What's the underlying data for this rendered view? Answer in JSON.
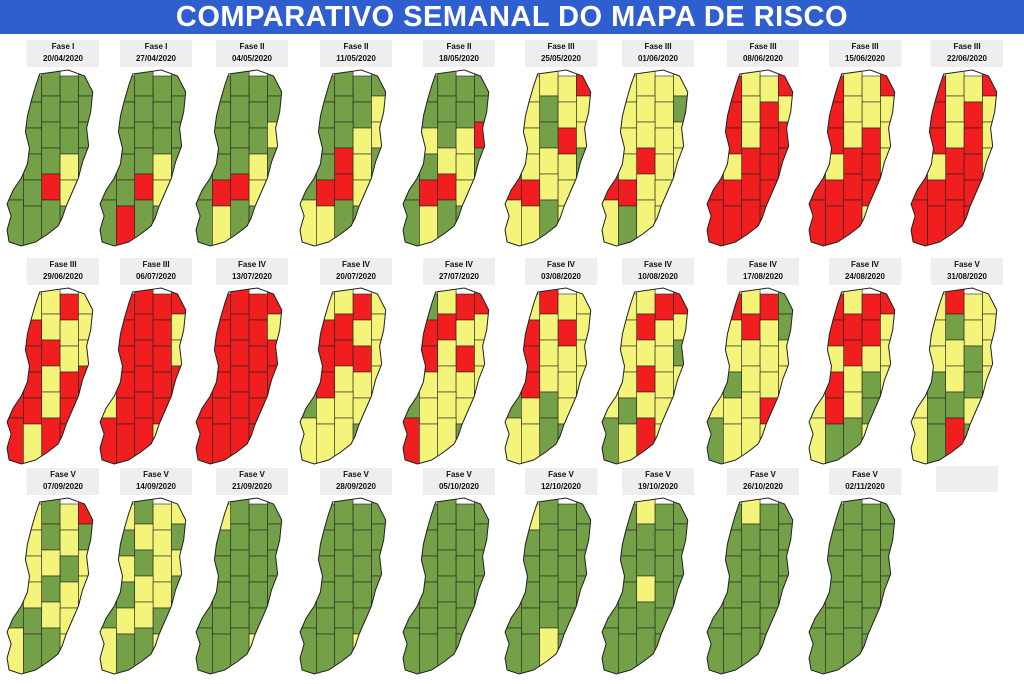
{
  "title": "COMPARATIVO SEMANAL DO MAPA DE RISCO",
  "colors": {
    "low": "#74a048",
    "moderate": "#f4f47a",
    "high": "#f01e1e",
    "border": "#222222",
    "banner": "#2f5fcf"
  },
  "weeks": [
    {
      "phase": "Fase I",
      "date": "20/04/2020",
      "risk": [
        "G",
        "G",
        "G",
        "G",
        "G",
        "G",
        "G",
        "G",
        "G",
        "G",
        "Y",
        "G",
        "G",
        "G",
        "G",
        "R",
        "G",
        "G",
        "Y",
        "G",
        "G",
        "G",
        "R",
        "Y",
        "G",
        "G",
        "G",
        "G",
        "G",
        "G"
      ]
    },
    {
      "phase": "Fase I",
      "date": "27/04/2020",
      "risk": [
        "G",
        "G",
        "G",
        "G",
        "G",
        "G",
        "G",
        "G",
        "G",
        "G",
        "Y",
        "G",
        "G",
        "G",
        "G",
        "R",
        "G",
        "G",
        "Y",
        "G",
        "G",
        "G",
        "R",
        "Y",
        "G",
        "G",
        "R",
        "G",
        "G",
        "G"
      ]
    },
    {
      "phase": "Fase II",
      "date": "04/05/2020",
      "risk": [
        "G",
        "G",
        "G",
        "G",
        "G",
        "G",
        "G",
        "G",
        "G",
        "G",
        "Y",
        "G",
        "G",
        "G",
        "Y",
        "R",
        "G",
        "G",
        "Y",
        "G",
        "G",
        "R",
        "R",
        "Y",
        "G",
        "G",
        "Y",
        "G",
        "G",
        "G"
      ]
    },
    {
      "phase": "Fase II",
      "date": "11/05/2020",
      "risk": [
        "G",
        "G",
        "G",
        "G",
        "G",
        "Y",
        "G",
        "G",
        "G",
        "Y",
        "Y",
        "G",
        "G",
        "Y",
        "Y",
        "R",
        "G",
        "R",
        "Y",
        "G",
        "G",
        "R",
        "R",
        "Y",
        "G",
        "Y",
        "Y",
        "G",
        "G",
        "G"
      ]
    },
    {
      "phase": "Fase II",
      "date": "18/05/2020",
      "risk": [
        "G",
        "G",
        "G",
        "G",
        "G",
        "G",
        "G",
        "G",
        "G",
        "G",
        "Y",
        "Y",
        "G",
        "Y",
        "R",
        "R",
        "G",
        "Y",
        "Y",
        "G",
        "G",
        "R",
        "R",
        "Y",
        "G",
        "G",
        "Y",
        "G",
        "G",
        "G"
      ]
    },
    {
      "phase": "Fase III",
      "date": "25/05/2020",
      "risk": [
        "Y",
        "Y",
        "Y",
        "Y",
        "R",
        "Y",
        "Y",
        "G",
        "Y",
        "Y",
        "Y",
        "Y",
        "G",
        "R",
        "Y",
        "R",
        "Y",
        "Y",
        "Y",
        "G",
        "R",
        "R",
        "Y",
        "Y",
        "G",
        "Y",
        "Y",
        "G",
        "Y",
        "G"
      ]
    },
    {
      "phase": "Fase III",
      "date": "01/06/2020",
      "risk": [
        "Y",
        "Y",
        "Y",
        "Y",
        "Y",
        "Y",
        "Y",
        "Y",
        "Y",
        "G",
        "Y",
        "Y",
        "Y",
        "Y",
        "Y",
        "Y",
        "Y",
        "R",
        "Y",
        "Y",
        "R",
        "R",
        "Y",
        "Y",
        "Y",
        "Y",
        "G",
        "Y",
        "Y",
        "G"
      ]
    },
    {
      "phase": "Fase III",
      "date": "08/06/2020",
      "risk": [
        "R",
        "R",
        "Y",
        "Y",
        "R",
        "Y",
        "R",
        "Y",
        "R",
        "Y",
        "R",
        "R",
        "Y",
        "R",
        "R",
        "R",
        "Y",
        "R",
        "R",
        "R",
        "R",
        "R",
        "R",
        "R",
        "Y",
        "R",
        "R",
        "R",
        "R",
        "G"
      ]
    },
    {
      "phase": "Fase III",
      "date": "15/06/2020",
      "risk": [
        "Y",
        "R",
        "Y",
        "Y",
        "R",
        "Y",
        "R",
        "Y",
        "Y",
        "Y",
        "R",
        "R",
        "Y",
        "R",
        "Y",
        "R",
        "Y",
        "R",
        "R",
        "Y",
        "R",
        "R",
        "R",
        "R",
        "Y",
        "R",
        "R",
        "R",
        "Y",
        "G"
      ]
    },
    {
      "phase": "Fase III",
      "date": "22/06/2020",
      "risk": [
        "R",
        "R",
        "Y",
        "Y",
        "R",
        "Y",
        "R",
        "Y",
        "R",
        "Y",
        "R",
        "R",
        "Y",
        "R",
        "Y",
        "R",
        "Y",
        "R",
        "R",
        "Y",
        "R",
        "R",
        "R",
        "R",
        "Y",
        "R",
        "R",
        "R",
        "R",
        "G"
      ]
    },
    {
      "phase": "Fase III",
      "date": "29/06/2020",
      "risk": [
        "Y",
        "Y",
        "Y",
        "R",
        "Y",
        "Y",
        "R",
        "Y",
        "Y",
        "Y",
        "R",
        "R",
        "R",
        "Y",
        "Y",
        "R",
        "R",
        "Y",
        "R",
        "R",
        "R",
        "R",
        "Y",
        "R",
        "R",
        "R",
        "Y",
        "R",
        "R",
        "R"
      ]
    },
    {
      "phase": "Fase III",
      "date": "06/07/2020",
      "risk": [
        "Y",
        "R",
        "R",
        "R",
        "R",
        "Y",
        "R",
        "R",
        "R",
        "Y",
        "R",
        "R",
        "R",
        "R",
        "Y",
        "R",
        "R",
        "R",
        "R",
        "R",
        "Y",
        "R",
        "R",
        "R",
        "R",
        "R",
        "R",
        "R",
        "Y",
        "R"
      ]
    },
    {
      "phase": "Fase IV",
      "date": "13/07/2020",
      "risk": [
        "Y",
        "R",
        "R",
        "R",
        "R",
        "Y",
        "R",
        "R",
        "R",
        "Y",
        "R",
        "R",
        "R",
        "R",
        "R",
        "R",
        "R",
        "R",
        "R",
        "R",
        "R",
        "R",
        "R",
        "R",
        "R",
        "R",
        "R",
        "R",
        "R",
        "R"
      ]
    },
    {
      "phase": "Fase IV",
      "date": "20/07/2020",
      "risk": [
        "Y",
        "Y",
        "Y",
        "R",
        "Y",
        "Y",
        "R",
        "R",
        "Y",
        "Y",
        "Y",
        "R",
        "R",
        "R",
        "Y",
        "G",
        "R",
        "Y",
        "Y",
        "Y",
        "G",
        "Y",
        "Y",
        "Y",
        "G",
        "Y",
        "Y",
        "Y",
        "G",
        "Y"
      ]
    },
    {
      "phase": "Fase IV",
      "date": "27/07/2020",
      "risk": [
        "R",
        "G",
        "Y",
        "R",
        "R",
        "Y",
        "R",
        "R",
        "Y",
        "Y",
        "Y",
        "R",
        "Y",
        "R",
        "Y",
        "Y",
        "Y",
        "Y",
        "Y",
        "Y",
        "G",
        "Y",
        "Y",
        "Y",
        "G",
        "R",
        "Y",
        "Y",
        "G",
        "Y"
      ]
    },
    {
      "phase": "Fase IV",
      "date": "03/08/2020",
      "risk": [
        "Y",
        "Y",
        "R",
        "Y",
        "Y",
        "Y",
        "R",
        "Y",
        "R",
        "Y",
        "R",
        "R",
        "Y",
        "Y",
        "Y",
        "Y",
        "R",
        "Y",
        "Y",
        "Y",
        "G",
        "Y",
        "G",
        "Y",
        "G",
        "Y",
        "Y",
        "G",
        "G",
        "Y"
      ]
    },
    {
      "phase": "Fase IV",
      "date": "10/08/2020",
      "risk": [
        "R",
        "Y",
        "Y",
        "R",
        "R",
        "Y",
        "Y",
        "R",
        "Y",
        "Y",
        "R",
        "Y",
        "Y",
        "Y",
        "G",
        "Y",
        "Y",
        "R",
        "Y",
        "Y",
        "Y",
        "G",
        "Y",
        "Y",
        "Y",
        "G",
        "Y",
        "R",
        "Y",
        "G"
      ]
    },
    {
      "phase": "Fase IV",
      "date": "17/08/2020",
      "risk": [
        "R",
        "R",
        "Y",
        "R",
        "G",
        "Y",
        "Y",
        "R",
        "Y",
        "G",
        "Y",
        "Y",
        "Y",
        "Y",
        "Y",
        "Y",
        "G",
        "Y",
        "Y",
        "Y",
        "Y",
        "Y",
        "Y",
        "R",
        "Y",
        "G",
        "Y",
        "Y",
        "Y",
        "G"
      ]
    },
    {
      "phase": "Fase IV",
      "date": "24/08/2020",
      "risk": [
        "R",
        "R",
        "Y",
        "R",
        "R",
        "Y",
        "R",
        "R",
        "R",
        "Y",
        "Y",
        "Y",
        "R",
        "Y",
        "Y",
        "Y",
        "R",
        "Y",
        "G",
        "Y",
        "Y",
        "R",
        "Y",
        "G",
        "Y",
        "Y",
        "G",
        "G",
        "Y",
        "G"
      ]
    },
    {
      "phase": "Fase V",
      "date": "31/08/2020",
      "risk": [
        "Y",
        "Y",
        "R",
        "Y",
        "Y",
        "Y",
        "Y",
        "G",
        "Y",
        "Y",
        "Y",
        "Y",
        "Y",
        "G",
        "Y",
        "Y",
        "G",
        "Y",
        "G",
        "Y",
        "Y",
        "G",
        "G",
        "Y",
        "G",
        "Y",
        "G",
        "R",
        "G",
        "G"
      ]
    },
    {
      "phase": "Fase V",
      "date": "07/09/2020",
      "risk": [
        "Y",
        "Y",
        "G",
        "Y",
        "R",
        "Y",
        "Y",
        "G",
        "Y",
        "G",
        "Y",
        "Y",
        "Y",
        "G",
        "Y",
        "G",
        "Y",
        "G",
        "Y",
        "Y",
        "G",
        "G",
        "Y",
        "Y",
        "G",
        "Y",
        "G",
        "G",
        "Y",
        "G"
      ]
    },
    {
      "phase": "Fase V",
      "date": "14/09/2020",
      "risk": [
        "Y",
        "Y",
        "G",
        "Y",
        "Y",
        "Y",
        "G",
        "Y",
        "Y",
        "G",
        "Y",
        "Y",
        "G",
        "Y",
        "Y",
        "G",
        "G",
        "Y",
        "Y",
        "G",
        "G",
        "Y",
        "Y",
        "G",
        "G",
        "Y",
        "G",
        "G",
        "Y",
        "G"
      ]
    },
    {
      "phase": "Fase V",
      "date": "21/09/2020",
      "risk": [
        "G",
        "Y",
        "G",
        "G",
        "G",
        "G",
        "G",
        "G",
        "G",
        "G",
        "G",
        "G",
        "G",
        "G",
        "G",
        "G",
        "G",
        "G",
        "G",
        "G",
        "G",
        "G",
        "G",
        "G",
        "G",
        "G",
        "G",
        "G",
        "Y",
        "G"
      ]
    },
    {
      "phase": "Fase V",
      "date": "28/09/2020",
      "risk": [
        "G",
        "G",
        "G",
        "G",
        "G",
        "G",
        "G",
        "G",
        "G",
        "G",
        "G",
        "G",
        "G",
        "G",
        "G",
        "G",
        "G",
        "G",
        "G",
        "G",
        "G",
        "G",
        "G",
        "G",
        "G",
        "G",
        "G",
        "G",
        "Y",
        "G"
      ]
    },
    {
      "phase": "Fase V",
      "date": "05/10/2020",
      "risk": [
        "G",
        "G",
        "G",
        "G",
        "G",
        "G",
        "G",
        "G",
        "G",
        "G",
        "G",
        "G",
        "G",
        "G",
        "G",
        "G",
        "G",
        "G",
        "G",
        "G",
        "G",
        "G",
        "G",
        "G",
        "G",
        "G",
        "G",
        "G",
        "G",
        "G"
      ]
    },
    {
      "phase": "Fase V",
      "date": "12/10/2020",
      "risk": [
        "G",
        "Y",
        "G",
        "G",
        "G",
        "G",
        "G",
        "G",
        "G",
        "G",
        "G",
        "G",
        "G",
        "G",
        "G",
        "G",
        "G",
        "G",
        "G",
        "G",
        "G",
        "G",
        "G",
        "G",
        "G",
        "G",
        "G",
        "Y",
        "G",
        "G"
      ]
    },
    {
      "phase": "Fase V",
      "date": "19/10/2020",
      "risk": [
        "G",
        "G",
        "Y",
        "G",
        "G",
        "G",
        "G",
        "G",
        "G",
        "G",
        "G",
        "G",
        "G",
        "G",
        "G",
        "G",
        "G",
        "Y",
        "G",
        "G",
        "G",
        "G",
        "G",
        "G",
        "G",
        "G",
        "G",
        "G",
        "G",
        "G"
      ]
    },
    {
      "phase": "Fase V",
      "date": "26/10/2020",
      "risk": [
        "G",
        "G",
        "Y",
        "G",
        "G",
        "G",
        "G",
        "G",
        "G",
        "G",
        "G",
        "G",
        "G",
        "G",
        "G",
        "G",
        "G",
        "G",
        "G",
        "G",
        "G",
        "G",
        "G",
        "G",
        "G",
        "G",
        "G",
        "G",
        "G",
        "G"
      ]
    },
    {
      "phase": "Fase V",
      "date": "02/11/2020",
      "risk": [
        "Y",
        "G",
        "G",
        "G",
        "G",
        "G",
        "G",
        "G",
        "G",
        "G",
        "G",
        "G",
        "G",
        "G",
        "G",
        "G",
        "G",
        "G",
        "G",
        "G",
        "G",
        "G",
        "G",
        "G",
        "G",
        "G",
        "G",
        "G",
        "G",
        "G"
      ]
    }
  ]
}
